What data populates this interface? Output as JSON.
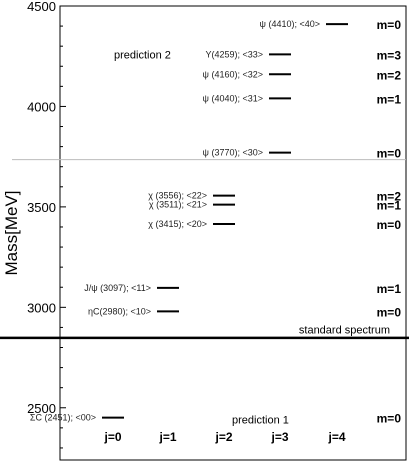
{
  "chart_data": {
    "type": "level-diagram",
    "ylabel": "Mass[MeV]",
    "ylim": [
      2240,
      4500
    ],
    "yticks": [
      2500,
      3000,
      3500,
      4000,
      4500
    ],
    "j_columns": [
      "j=0",
      "j=1",
      "j=2",
      "j=3",
      "j=4"
    ],
    "levels": [
      {
        "label": "ψ (4410); <40>",
        "j": 4,
        "mass": 4410
      },
      {
        "label": "Υ(4259); <33>",
        "j": 3,
        "mass": 4259
      },
      {
        "label": "ψ (4160); <32>",
        "j": 3,
        "mass": 4160
      },
      {
        "label": "ψ (4040); <31>",
        "j": 3,
        "mass": 4040
      },
      {
        "label": "ψ (3770); <30>",
        "j": 3,
        "mass": 3770
      },
      {
        "label": "χ (3556); <22>",
        "j": 2,
        "mass": 3556
      },
      {
        "label": "χ (3511); <21>",
        "j": 2,
        "mass": 3511
      },
      {
        "label": "χ (3415); <20>",
        "j": 2,
        "mass": 3415
      },
      {
        "label": "J/ψ (3097); <11>",
        "j": 1,
        "mass": 3097
      },
      {
        "label": "ηC(2980); <10>",
        "j": 1,
        "mass": 2980
      },
      {
        "label": "ΣC (2451); <00>",
        "j": 0,
        "mass": 2451
      }
    ],
    "m_labels": [
      {
        "text": "m=0",
        "mass": 4410
      },
      {
        "text": "m=3",
        "mass": 4259
      },
      {
        "text": "m=2",
        "mass": 4160
      },
      {
        "text": "m=1",
        "mass": 4040
      },
      {
        "text": "m=0",
        "mass": 3770
      },
      {
        "text": "m=2",
        "mass": 3556
      },
      {
        "text": "m=1",
        "mass": 3511
      },
      {
        "text": "m=0",
        "mass": 3415
      },
      {
        "text": "m=1",
        "mass": 3097
      },
      {
        "text": "m=0",
        "mass": 2980
      },
      {
        "text": "m=0",
        "mass": 2451
      }
    ],
    "separators": [
      {
        "mass": 3735,
        "style": "thin"
      },
      {
        "mass": 2848,
        "style": "thick"
      }
    ],
    "annotations": [
      {
        "text": "prediction 2",
        "mass": 4259
      },
      {
        "text": "standard spectrum",
        "mass": 2890
      },
      {
        "text": "prediction 1",
        "mass": 2442
      }
    ]
  }
}
